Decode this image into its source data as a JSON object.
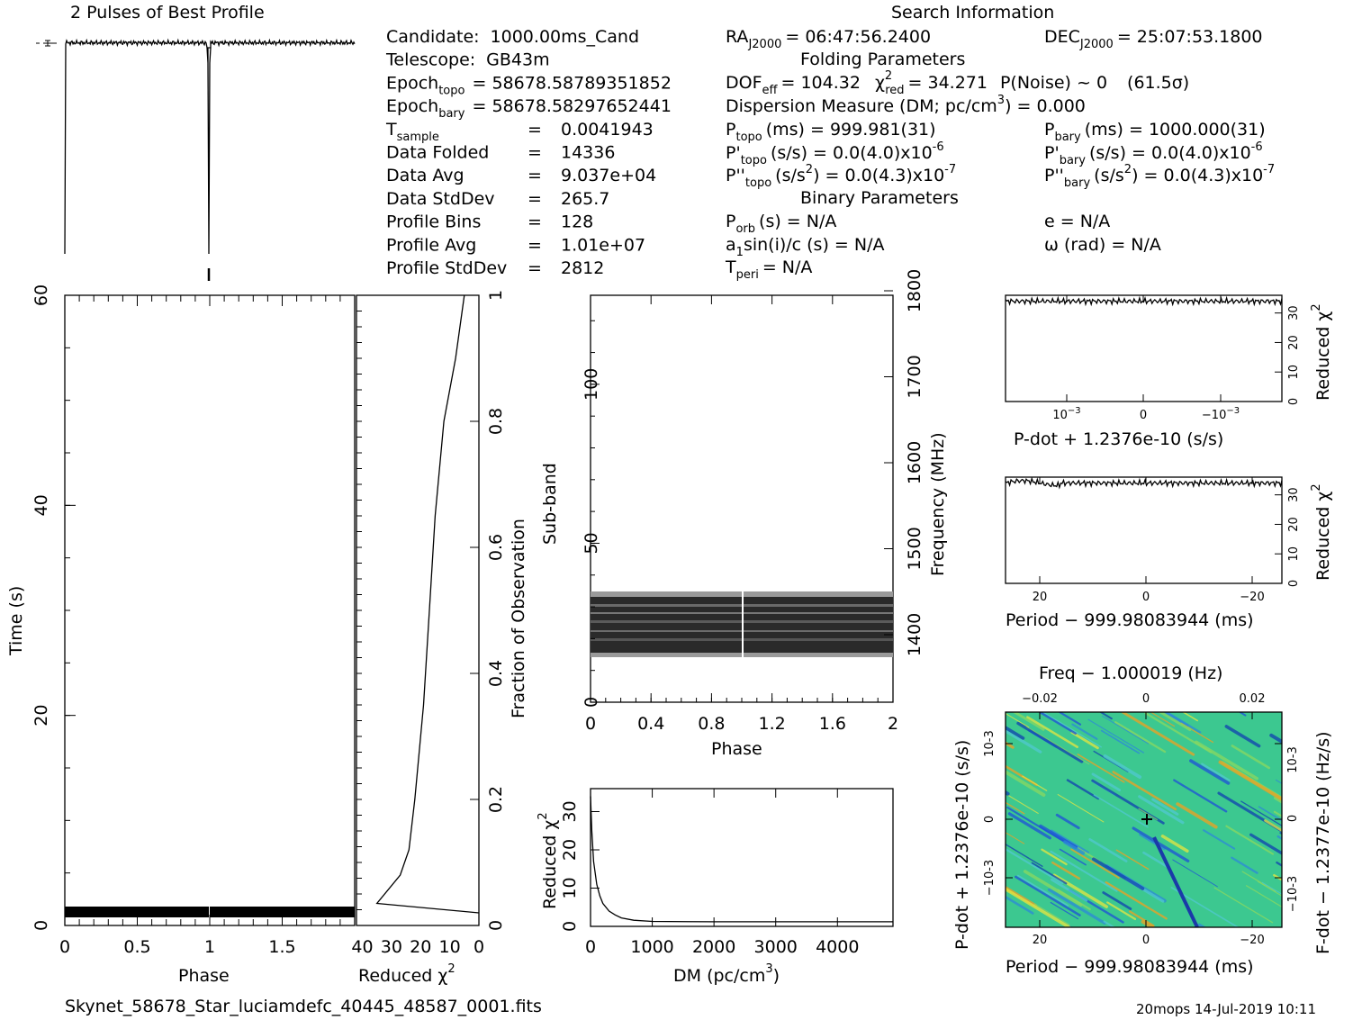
{
  "profile_title": "2 Pulses of Best Profile",
  "search_title": "Search Information",
  "info_left": [
    {
      "k": "Candidate:",
      "v": "1000.00ms_Cand"
    },
    {
      "k": "Telescope:",
      "v": "GB43m"
    },
    {
      "k": "Epoch",
      "sub": "topo",
      "v": "= 58678.58789351852"
    },
    {
      "k": "Epoch",
      "sub": "bary",
      "v": "= 58678.58297652441"
    },
    {
      "k": "T",
      "sub": "sample",
      "eq": "=",
      "v": "0.0041943"
    },
    {
      "k": "Data Folded",
      "eq": "=",
      "v": "14336"
    },
    {
      "k": "Data Avg",
      "eq": "=",
      "v": "9.037e+04"
    },
    {
      "k": "Data StdDev",
      "eq": "=",
      "v": "265.7"
    },
    {
      "k": "Profile Bins",
      "eq": "=",
      "v": "128"
    },
    {
      "k": "Profile Avg",
      "eq": "=",
      "v": "1.01e+07"
    },
    {
      "k": "Profile StdDev",
      "eq": "=",
      "v": "2812"
    }
  ],
  "ra": {
    "label": "RA",
    "sub": "J2000",
    "value": "= 06:47:56.2400"
  },
  "dec": {
    "label": "DEC",
    "sub": "J2000",
    "value": "= 25:07:53.1800"
  },
  "folding_title": "Folding Parameters",
  "binary_title": "Binary Parameters",
  "dof": "DOF",
  "dof_sub": "eff",
  "dof_value": "= 104.32",
  "chi_label": "χ",
  "chi_sub": "red",
  "chi_value": "= 34.271",
  "pnoise": "P(Noise) ~ 0",
  "sigma": "(61.5σ)",
  "dm_line_a": "Dispersion Measure (DM; pc/cm",
  "dm_line_b": ") = 0.000",
  "p_topo": {
    "a": "P",
    "sub": "topo",
    "b": "(ms) =  999.981(31)"
  },
  "p_bary": {
    "a": "P",
    "sub": "bary",
    "b": "(ms) =  1000.000(31)"
  },
  "pd_topo": {
    "a": "P'",
    "sub": "topo",
    "b": "(s/s) = 0.0(4.0)x10",
    "exp": "-6"
  },
  "pd_bary": {
    "a": "P'",
    "sub": "bary",
    "b": "(s/s) = 0.0(4.0)x10",
    "exp": "-6"
  },
  "pdd_topo": {
    "a": "P''",
    "sub": "topo",
    "b": "(s/s",
    "sup": "2",
    "c": ") = 0.0(4.3)x10",
    "exp": "-7"
  },
  "pdd_bary": {
    "a": "P''",
    "sub": "bary",
    "b": "(s/s",
    "sup": "2",
    "c": ") = 0.0(4.3)x10",
    "exp": "-7"
  },
  "porb": {
    "a": "P",
    "sub": "orb",
    "b": "(s) = N/A"
  },
  "e": "e = N/A",
  "a1": {
    "a": "a",
    "sub": "1",
    "b": "sin(i)/c (s) = N/A"
  },
  "omega": "ω (rad) = N/A",
  "tperi": {
    "a": "T",
    "sub": "peri",
    "b": "= N/A"
  },
  "footer_file": "Skynet_58678_Star_luciamdefc_40445_48587_0001.fits",
  "footer_stamp": "20mops 14-Jul-2019 10:11",
  "labels": {
    "phase": "Phase",
    "time": "Time (s)",
    "reduced": "Reduced",
    "chi": "χ",
    "two": "2",
    "fraction": "Fraction of Observation",
    "subband": "Sub-band",
    "frequency": "Frequency (MHz)",
    "dm_a": "DM (pc/cm",
    "dm_b": ")",
    "three": "3",
    "pdot_axis": "P-dot + 1.2376e-10 (s/s)",
    "period_axis": "Period − 999.98083944 (ms)",
    "freq_axis": "Freq − 1.000019 (Hz)",
    "pdot_left": "P-dot + 1.2376e-10 (s/s)",
    "fdot_right": "F-dot − 1.2377e-10 (Hz/s)"
  },
  "chart_data": [
    {
      "type": "line",
      "name": "profile",
      "title": "2 Pulses of Best Profile",
      "x": [
        0,
        0.01,
        0.02,
        0.5,
        0.98,
        0.99,
        1.0,
        1.01,
        1.02,
        1.5,
        1.98,
        1.99,
        2.0
      ],
      "y": [
        0.0,
        1.0,
        0.99,
        1.0,
        0.99,
        0.85,
        0.0,
        0.85,
        0.99,
        1.0,
        0.99,
        1.0,
        0.99
      ]
    },
    {
      "type": "heatmap",
      "name": "time_vs_phase",
      "xlabel": "Phase",
      "ylabel": "Time (s)",
      "xlim": [
        0,
        2
      ],
      "ylim": [
        0,
        60
      ],
      "xticks": [
        "0",
        "0.5",
        "1",
        "1.5"
      ],
      "yticks": [
        "0",
        "20",
        "40",
        "60"
      ],
      "dark_band": [
        1.0,
        2.0
      ]
    },
    {
      "type": "line",
      "name": "time_reduced_chi2",
      "xlabel": "Reduced χ2",
      "xticks": [
        "40",
        "30",
        "20",
        "10",
        "0"
      ],
      "yticks": [
        "0",
        "0.2",
        "0.4",
        "0.6",
        "0.8",
        "1"
      ],
      "ylabel": "Fraction of Observation",
      "x": [
        0,
        35,
        27,
        24,
        22,
        19,
        17,
        15,
        12,
        8,
        5
      ],
      "y": [
        0.02,
        0.035,
        0.08,
        0.12,
        0.2,
        0.35,
        0.5,
        0.65,
        0.8,
        0.9,
        1.0
      ]
    },
    {
      "type": "heatmap",
      "name": "subband_vs_phase",
      "xlabel": "Phase",
      "ylabel": "Sub-band",
      "xticks": [
        "0",
        "0.4",
        "0.8",
        "1.2",
        "1.6",
        "2"
      ],
      "yticks": [
        "0",
        "50",
        "100"
      ],
      "freq_ticks": [
        "1400",
        "1500",
        "1600",
        "1700",
        "1800"
      ],
      "ylim": [
        0,
        128
      ],
      "band": [
        14,
        35
      ]
    },
    {
      "type": "line",
      "name": "dm_curve",
      "xlabel": "DM (pc/cm3)",
      "ylabel": "Reduced χ2",
      "xticks": [
        "0",
        "1000",
        "2000",
        "3000",
        "4000"
      ],
      "yticks": [
        "0",
        "10",
        "20",
        "30"
      ],
      "x": [
        0,
        20,
        50,
        100,
        150,
        200,
        300,
        400,
        500,
        700,
        1000,
        2000,
        3000,
        4000,
        4900
      ],
      "y": [
        34,
        25,
        17,
        11,
        8,
        6,
        4,
        3,
        2.2,
        1.6,
        1.3,
        1.2,
        1.2,
        1.2,
        1.2
      ]
    },
    {
      "type": "line",
      "name": "pdot_chi2",
      "xlabel": "P-dot + 1.2376e-10 (s/s)",
      "ylabel": "Reduced χ2",
      "xticks": [
        "10-3",
        "0",
        "−10-3"
      ],
      "yticks": [
        "0",
        "10",
        "20",
        "30"
      ],
      "y_level": 34
    },
    {
      "type": "line",
      "name": "period_chi2",
      "xlabel": "Period − 999.98083944 (ms)",
      "ylabel": "Reduced χ2",
      "xticks": [
        "20",
        "0",
        "−20"
      ],
      "yticks": [
        "0",
        "10",
        "20",
        "30"
      ],
      "y_level": 34
    },
    {
      "type": "heatmap",
      "name": "period_pdot",
      "xlabel": "Period − 999.98083944 (ms)",
      "x2label": "Freq − 1.000019 (Hz)",
      "xticks": [
        "20",
        "0",
        "−20"
      ],
      "x2ticks": [
        "−0.02",
        "0",
        "0.02"
      ],
      "yticks": [
        "10-3",
        "0",
        "−10-3"
      ]
    }
  ]
}
